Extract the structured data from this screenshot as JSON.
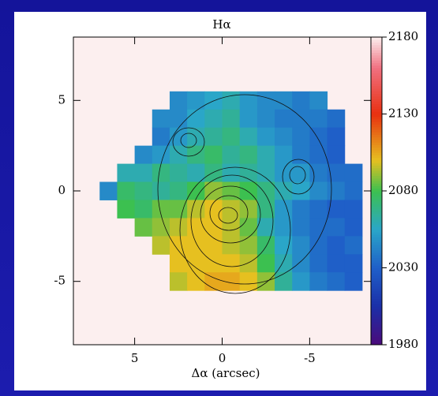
{
  "chart_data": {
    "type": "heatmap",
    "title": "Hα",
    "xlabel": "Δα (arcsec)",
    "xlim": [
      8.5,
      -8.5
    ],
    "ylim": [
      -8.5,
      8.5
    ],
    "xticks": [
      5,
      0,
      -5
    ],
    "yticks": [
      5,
      0,
      -5
    ],
    "x": [
      6.5,
      5.5,
      4.5,
      3.5,
      2.5,
      1.5,
      0.5,
      -0.5,
      -1.5,
      -2.5,
      -3.5,
      -4.5,
      -5.5,
      -6.5,
      -7.5
    ],
    "y": [
      5,
      4,
      3,
      2,
      1,
      0,
      -1,
      -2,
      -3,
      -4,
      -5
    ],
    "values": [
      [
        null,
        null,
        null,
        null,
        2045,
        2050,
        2055,
        2060,
        2050,
        2045,
        2045,
        2040,
        2045,
        null,
        null
      ],
      [
        null,
        null,
        null,
        2045,
        2045,
        2055,
        2060,
        2065,
        2050,
        2045,
        2040,
        2040,
        2040,
        2035,
        null
      ],
      [
        null,
        null,
        null,
        2040,
        2050,
        2060,
        2065,
        2070,
        2060,
        2050,
        2045,
        2040,
        2035,
        2030,
        null
      ],
      [
        null,
        null,
        2045,
        2050,
        2060,
        2070,
        2075,
        2065,
        2070,
        2060,
        2050,
        2040,
        2035,
        2030,
        null
      ],
      [
        null,
        2060,
        2060,
        2070,
        2065,
        2060,
        2070,
        2060,
        2065,
        2060,
        2050,
        2050,
        2040,
        2035,
        2035
      ],
      [
        2045,
        2075,
        2070,
        2065,
        2070,
        2080,
        2090,
        2085,
        2080,
        2070,
        2060,
        2055,
        2045,
        2040,
        2035
      ],
      [
        null,
        2080,
        2075,
        2085,
        2085,
        2095,
        2100,
        2095,
        2090,
        2070,
        2050,
        2040,
        2035,
        2030,
        2030
      ],
      [
        null,
        null,
        2085,
        2090,
        2095,
        2100,
        2100,
        2095,
        2085,
        2060,
        2050,
        2040,
        2035,
        2035,
        2030
      ],
      [
        null,
        null,
        null,
        2095,
        2100,
        2100,
        2100,
        2095,
        2090,
        2075,
        2055,
        2045,
        2035,
        2030,
        2035
      ],
      [
        null,
        null,
        null,
        null,
        2100,
        2100,
        2100,
        2100,
        2095,
        2080,
        2060,
        2045,
        2035,
        2030,
        2030
      ],
      [
        null,
        null,
        null,
        null,
        2095,
        2100,
        2105,
        2105,
        2100,
        2090,
        2065,
        2050,
        2040,
        2035,
        2030
      ]
    ],
    "colorbar": {
      "lim": [
        1980,
        2180
      ],
      "ticks": [
        1980,
        2030,
        2080,
        2130,
        2180
      ]
    }
  }
}
